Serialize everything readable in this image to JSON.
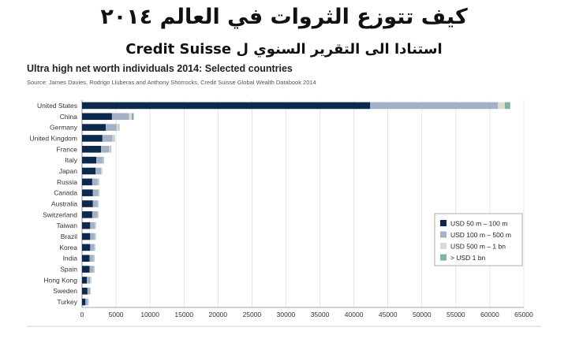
{
  "header": {
    "title_ar": "كيف تتوزع الثروات في العالم ٢٠١٤",
    "subtitle_ar": "استنادا الى التقرير السنوي ل Credit Suisse"
  },
  "chart_data": {
    "type": "bar",
    "orientation": "horizontal",
    "stacked": true,
    "title": "Ultra high net worth individuals 2014: Selected countries",
    "source": "Source: James Davies, Rodrigo Lluberas and Anthony Shorrocks, Credit Suisse Global Wealth Databook 2014",
    "categories": [
      "United States",
      "China",
      "Germany",
      "United Kingdom",
      "France",
      "Italy",
      "Japan",
      "Russia",
      "Canada",
      "Australia",
      "Switzerland",
      "Taiwan",
      "Brazil",
      "Korea",
      "India",
      "Spain",
      "Hong Kong",
      "Sweden",
      "Turkey"
    ],
    "series": [
      {
        "name": "USD 50 m – 100 m",
        "color": "#0d2a4e",
        "values": [
          42400,
          4400,
          3500,
          3000,
          2800,
          2100,
          2000,
          1500,
          1600,
          1600,
          1500,
          1200,
          1200,
          1200,
          1100,
          1100,
          700,
          800,
          500
        ]
      },
      {
        "name": "USD 100 m – 500 m",
        "color": "#a3b1c8",
        "values": [
          18800,
          2500,
          1600,
          1500,
          1200,
          1000,
          800,
          800,
          800,
          700,
          800,
          700,
          700,
          600,
          600,
          600,
          500,
          400,
          400
        ]
      },
      {
        "name": "USD 500 m – 1 bn",
        "color": "#dcdcd2",
        "values": [
          1000,
          400,
          300,
          200,
          200,
          100,
          100,
          100,
          100,
          100,
          100,
          100,
          100,
          100,
          100,
          100,
          100,
          50,
          50
        ]
      },
      {
        "name": "> USD 1 bn",
        "color": "#82b2a6",
        "values": [
          800,
          300,
          100,
          100,
          100,
          50,
          50,
          100,
          50,
          50,
          50,
          50,
          50,
          50,
          50,
          50,
          50,
          30,
          30
        ]
      }
    ],
    "xlim": [
      0,
      65000
    ],
    "xticks": [
      "0",
      "5000",
      "10000",
      "15000",
      "20000",
      "25000",
      "30000",
      "35000",
      "40000",
      "45000",
      "50000",
      "55000",
      "60000",
      "65000"
    ],
    "grid": true,
    "legend_position": "bottom-right"
  }
}
